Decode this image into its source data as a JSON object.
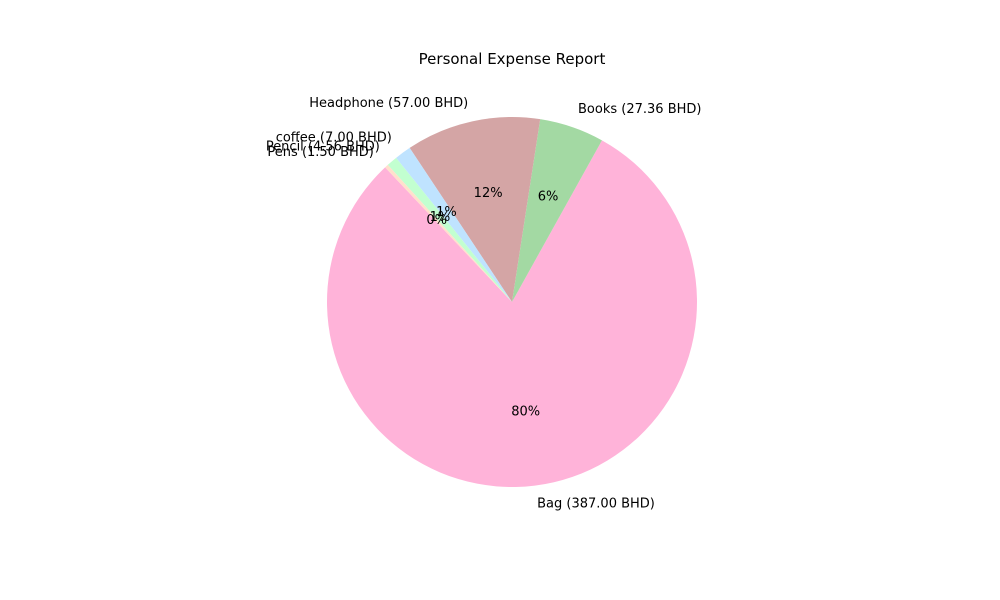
{
  "chart_data": {
    "type": "pie",
    "title": "Personal Expense Report",
    "start_angle_deg": 133.3,
    "direction": "counterclockwise",
    "slices": [
      {
        "label": "Bag (387.00 BHD)",
        "value": 387.0,
        "pct_label": "80%",
        "color": "#FFB3D9"
      },
      {
        "label": "Books (27.36 BHD)",
        "value": 27.36,
        "pct_label": "6%",
        "color": "#A3D9A3"
      },
      {
        "label": "Headphone (57.00 BHD)",
        "value": 57.0,
        "pct_label": "12%",
        "color": "#D4A5A5"
      },
      {
        "label": "coffee (7.00 BHD)",
        "value": 7.0,
        "pct_label": "1%",
        "color": "#BFE3FF"
      },
      {
        "label": "Pencil (4.56 BHD)",
        "value": 4.56,
        "pct_label": "1%",
        "color": "#C2FFD0"
      },
      {
        "label": "Pens (1.50 BHD)",
        "value": 1.5,
        "pct_label": "0%",
        "color": "#FFE0CC"
      }
    ]
  }
}
